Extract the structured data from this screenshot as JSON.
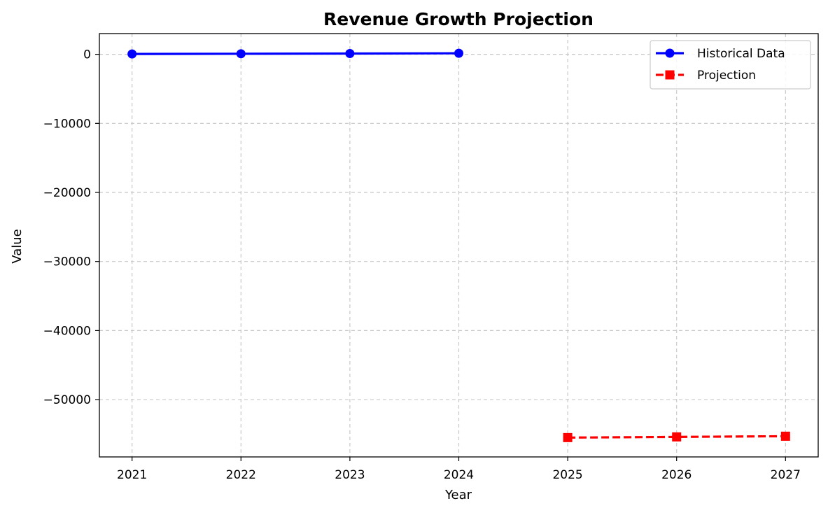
{
  "chart_data": {
    "type": "line",
    "title": "Revenue Growth Projection",
    "xlabel": "Year",
    "ylabel": "Value",
    "x_ticks": [
      2021,
      2022,
      2023,
      2024,
      2025,
      2026,
      2027
    ],
    "x_tick_labels": [
      "2021",
      "2022",
      "2023",
      "2024",
      "2025",
      "2026",
      "2027"
    ],
    "y_ticks": [
      0,
      -10000,
      -20000,
      -30000,
      -40000,
      -50000
    ],
    "y_tick_labels": [
      "0",
      "−10000",
      "−20000",
      "−30000",
      "−40000",
      "−50000"
    ],
    "xlim": [
      2020.7,
      2027.3
    ],
    "ylim": [
      -58300,
      3000
    ],
    "grid": true,
    "legend_position": "top-right",
    "series": [
      {
        "name": "Historical Data",
        "color": "#0000ff",
        "line_style": "solid",
        "marker": "circle",
        "x": [
          2021,
          2022,
          2023,
          2024
        ],
        "y": [
          50,
          80,
          110,
          150
        ]
      },
      {
        "name": "Projection",
        "color": "#ff0000",
        "line_style": "dashed",
        "marker": "square",
        "x": [
          2025,
          2026,
          2027
        ],
        "y": [
          -55500,
          -55400,
          -55300
        ]
      }
    ]
  }
}
